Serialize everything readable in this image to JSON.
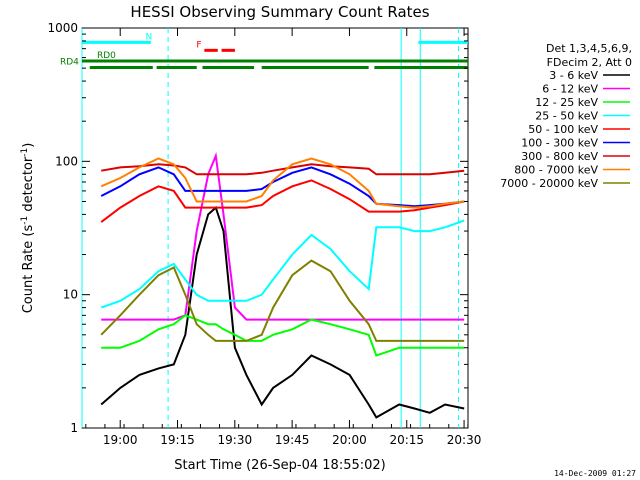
{
  "chart_data": {
    "type": "line",
    "title": "HESSI Observing Summary Count Rates",
    "xlabel": "Start Time (26-Sep-04 18:55:02)",
    "ylabel_main": "Count Rate (s",
    "ylabel_sup1": "-1",
    "ylabel_mid": " detector",
    "ylabel_sup2": "-1",
    "ylabel_end": ")",
    "yscale": "log",
    "ylim": [
      1,
      1000
    ],
    "xlim_min": [
      -5.03,
      96.0
    ],
    "yticks": [
      1,
      10,
      100,
      1000
    ],
    "ytick_labels": [
      "1",
      "10",
      "100",
      "1000"
    ],
    "xticks_min": [
      4.97,
      19.97,
      34.97,
      49.97,
      64.97,
      79.97,
      94.97
    ],
    "xtick_labels": [
      "19:00",
      "19:15",
      "19:30",
      "19:45",
      "20:00",
      "20:15",
      "20:30"
    ],
    "legend_header": [
      "Det 1,3,4,5,6,9,",
      "FDecim 2, Att 0"
    ],
    "series": [
      {
        "name": "3 - 6 keV",
        "color": "#000000",
        "x": [
          0,
          5,
          10,
          15,
          19,
          22,
          25,
          28,
          30,
          32,
          35,
          38,
          42,
          45,
          50,
          55,
          60,
          65,
          70,
          72,
          78,
          82,
          86,
          90,
          95
        ],
        "y": [
          1.5,
          2.0,
          2.5,
          2.8,
          3.0,
          5.0,
          20,
          40,
          45,
          30,
          4.0,
          2.5,
          1.5,
          2.0,
          2.5,
          3.5,
          3.0,
          2.5,
          1.5,
          1.2,
          1.5,
          1.4,
          1.3,
          1.5,
          1.4
        ]
      },
      {
        "name": "6 - 12 keV",
        "color": "#ff00ff",
        "x": [
          0,
          5,
          10,
          15,
          19,
          22,
          25,
          28,
          30,
          32,
          35,
          38,
          42,
          45,
          50,
          55,
          60,
          65,
          70,
          72,
          78,
          82,
          86,
          90,
          95
        ],
        "y": [
          6.5,
          6.5,
          6.5,
          6.5,
          6.5,
          7,
          30,
          80,
          110,
          40,
          8,
          6.5,
          6.5,
          6.5,
          6.5,
          6.5,
          6.5,
          6.5,
          6.5,
          6.5,
          6.5,
          6.5,
          6.5,
          6.5,
          6.5
        ]
      },
      {
        "name": "12 - 25 keV",
        "color": "#00ff00",
        "x": [
          0,
          5,
          10,
          15,
          19,
          22,
          25,
          28,
          30,
          32,
          35,
          38,
          42,
          45,
          50,
          55,
          60,
          65,
          70,
          72,
          78,
          82,
          86,
          90,
          95
        ],
        "y": [
          4.0,
          4.0,
          4.5,
          5.5,
          6.0,
          7,
          6.5,
          6.0,
          6.0,
          5.5,
          5.0,
          4.5,
          4.5,
          5.0,
          5.5,
          6.5,
          6.0,
          5.5,
          5.0,
          3.5,
          4.0,
          4.0,
          4.0,
          4.0,
          4.0
        ]
      },
      {
        "name": "25 - 50 keV",
        "color": "#00ffff",
        "x": [
          0,
          5,
          10,
          15,
          19,
          22,
          25,
          28,
          30,
          32,
          35,
          38,
          42,
          45,
          50,
          55,
          60,
          65,
          70,
          72,
          78,
          82,
          86,
          90,
          95
        ],
        "y": [
          8,
          9,
          11,
          15,
          17,
          13,
          10,
          9,
          9,
          9,
          9,
          9,
          10,
          13,
          20,
          28,
          22,
          15,
          11,
          32,
          32,
          30,
          30,
          32,
          36
        ]
      },
      {
        "name": "50 - 100 keV",
        "color": "#ff0000",
        "x": [
          0,
          5,
          10,
          15,
          19,
          22,
          25,
          28,
          30,
          32,
          35,
          38,
          42,
          45,
          50,
          55,
          60,
          65,
          70,
          72,
          78,
          82,
          86,
          90,
          95
        ],
        "y": [
          35,
          45,
          55,
          65,
          60,
          45,
          45,
          45,
          45,
          45,
          45,
          45,
          47,
          55,
          65,
          72,
          62,
          52,
          42,
          42,
          42,
          43,
          45,
          47,
          50
        ]
      },
      {
        "name": "100 - 300 keV",
        "color": "#0000ff",
        "x": [
          0,
          5,
          10,
          15,
          19,
          22,
          25,
          28,
          30,
          32,
          35,
          38,
          42,
          45,
          50,
          55,
          60,
          65,
          70,
          72,
          78,
          82,
          86,
          90,
          95
        ],
        "y": [
          55,
          65,
          80,
          90,
          80,
          60,
          60,
          60,
          60,
          60,
          60,
          60,
          62,
          70,
          82,
          90,
          80,
          68,
          55,
          48,
          47,
          46,
          47,
          48,
          50
        ]
      },
      {
        "name": "300 - 800 keV",
        "color": "#dd0000",
        "x": [
          0,
          5,
          10,
          15,
          19,
          22,
          25,
          28,
          30,
          32,
          35,
          38,
          42,
          45,
          50,
          55,
          60,
          65,
          70,
          72,
          78,
          82,
          86,
          90,
          95
        ],
        "y": [
          85,
          90,
          92,
          95,
          93,
          90,
          80,
          80,
          80,
          80,
          80,
          80,
          82,
          85,
          90,
          95,
          92,
          90,
          88,
          80,
          80,
          80,
          80,
          82,
          85
        ]
      },
      {
        "name": "800 - 7000 keV",
        "color": "#ff8000",
        "x": [
          0,
          5,
          10,
          15,
          19,
          22,
          25,
          28,
          30,
          32,
          35,
          38,
          42,
          45,
          50,
          55,
          60,
          65,
          70,
          72,
          78,
          82,
          86,
          90,
          95
        ],
        "y": [
          65,
          75,
          90,
          105,
          95,
          75,
          50,
          50,
          50,
          50,
          50,
          50,
          55,
          72,
          95,
          105,
          95,
          80,
          60,
          48,
          46,
          45,
          46,
          48,
          50
        ]
      },
      {
        "name": "7000 - 20000 keV",
        "color": "#808000",
        "x": [
          0,
          5,
          10,
          15,
          19,
          22,
          25,
          28,
          30,
          32,
          35,
          38,
          42,
          45,
          50,
          55,
          60,
          65,
          70,
          72,
          78,
          82,
          86,
          90,
          95
        ],
        "y": [
          5,
          7,
          10,
          14,
          16,
          10,
          6,
          5,
          4.5,
          4.5,
          4.5,
          4.5,
          5,
          8,
          14,
          18,
          15,
          9,
          6,
          4.5,
          4.5,
          4.5,
          4.5,
          4.5,
          4.5
        ]
      }
    ],
    "status_bars": [
      {
        "label": "N",
        "color": "#00ffff",
        "level": 780,
        "segments": [
          [
            -5.03,
            13.0
          ],
          [
            83.0,
            96.0
          ]
        ]
      },
      {
        "label": "F",
        "color": "#ff0000",
        "level": 680,
        "segments": [
          [
            27.0,
            30.5
          ],
          [
            31.5,
            35.0
          ]
        ]
      },
      {
        "label": "RD0",
        "color": "#008000",
        "level": 565,
        "segments": [
          [
            -5.03,
            96.0
          ]
        ]
      },
      {
        "label": "RD4",
        "color": "#008000",
        "level": 505,
        "segments": [
          [
            -3.0,
            13.5
          ],
          [
            14.5,
            25.0
          ],
          [
            26.5,
            40.0
          ],
          [
            42.0,
            70.0
          ],
          [
            71.5,
            96.0
          ]
        ]
      }
    ],
    "cyan_solid_lines_min": [
      -5.03,
      78.5,
      83.5
    ],
    "cyan_dashed_lines_min": [
      17.5,
      93.5
    ]
  },
  "footer": "14-Dec-2009 01:27"
}
